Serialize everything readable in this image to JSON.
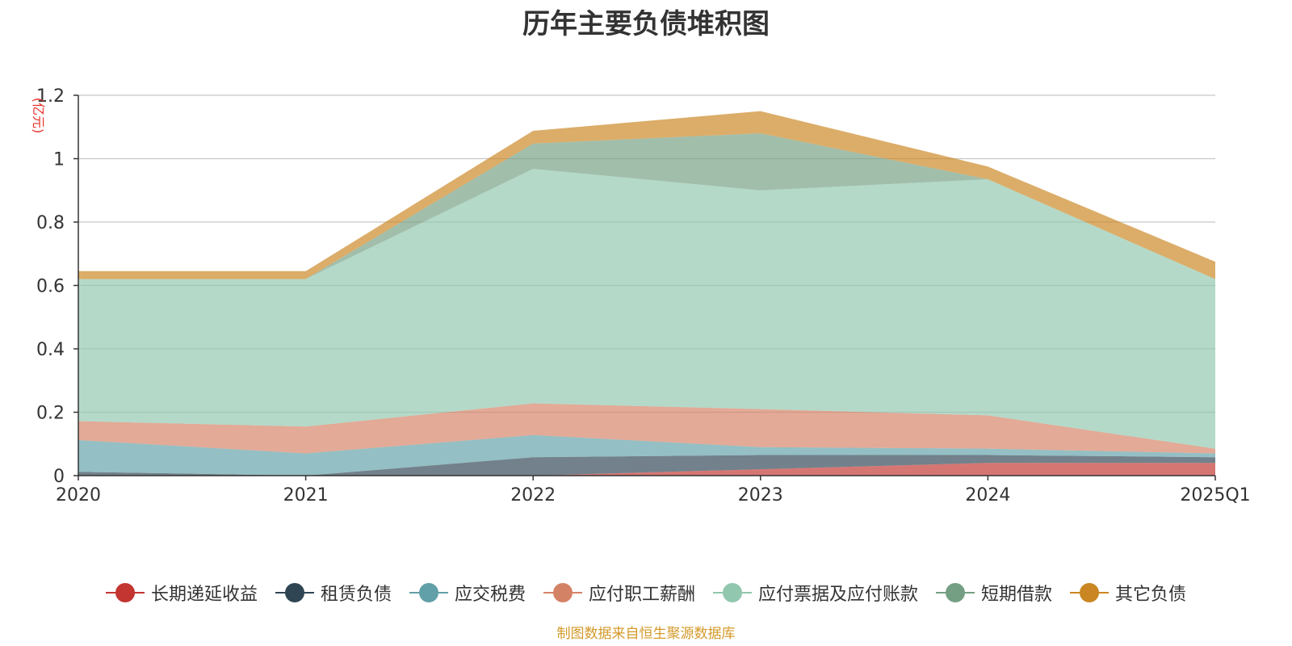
{
  "title": "历年主要负债堆积图",
  "source_note": "制图数据来自恒生聚源数据库",
  "chart_data": {
    "type": "area",
    "stacked": true,
    "unit": "(亿元)",
    "categories": [
      "2020",
      "2021",
      "2022",
      "2023",
      "2024",
      "2025Q1"
    ],
    "ylim": [
      0,
      1.2
    ],
    "yticks": [
      0,
      0.2,
      0.4,
      0.6,
      0.8,
      1,
      1.2
    ],
    "ytick_labels": [
      "0",
      "0.2",
      "0.4",
      "0.6",
      "0.8",
      "1",
      "1.2"
    ],
    "grid": true,
    "legend_position": "bottom",
    "series": [
      {
        "name": "长期递延收益",
        "color": "#c23531",
        "values": [
          0,
          0,
          0,
          0.02,
          0.04,
          0.04
        ]
      },
      {
        "name": "租赁负债",
        "color": "#2f4554",
        "values": [
          0.012,
          0,
          0.058,
          0.045,
          0.025,
          0.018
        ]
      },
      {
        "name": "应交税费",
        "color": "#61a0a8",
        "values": [
          0.1,
          0.07,
          0.07,
          0.025,
          0.02,
          0.012
        ]
      },
      {
        "name": "应付职工薪酬",
        "color": "#d48265",
        "values": [
          0.06,
          0.085,
          0.1,
          0.12,
          0.105,
          0.015
        ]
      },
      {
        "name": "应付票据及应付账款",
        "color": "#91c7ae",
        "values": [
          0.448,
          0.465,
          0.74,
          0.69,
          0.745,
          0.535
        ]
      },
      {
        "name": "短期借款",
        "color": "#749f83",
        "values": [
          0,
          0,
          0.08,
          0.18,
          0,
          0
        ]
      },
      {
        "name": "其它负债",
        "color": "#ca8622",
        "values": [
          0.025,
          0.025,
          0.04,
          0.07,
          0.04,
          0.055
        ]
      }
    ]
  }
}
